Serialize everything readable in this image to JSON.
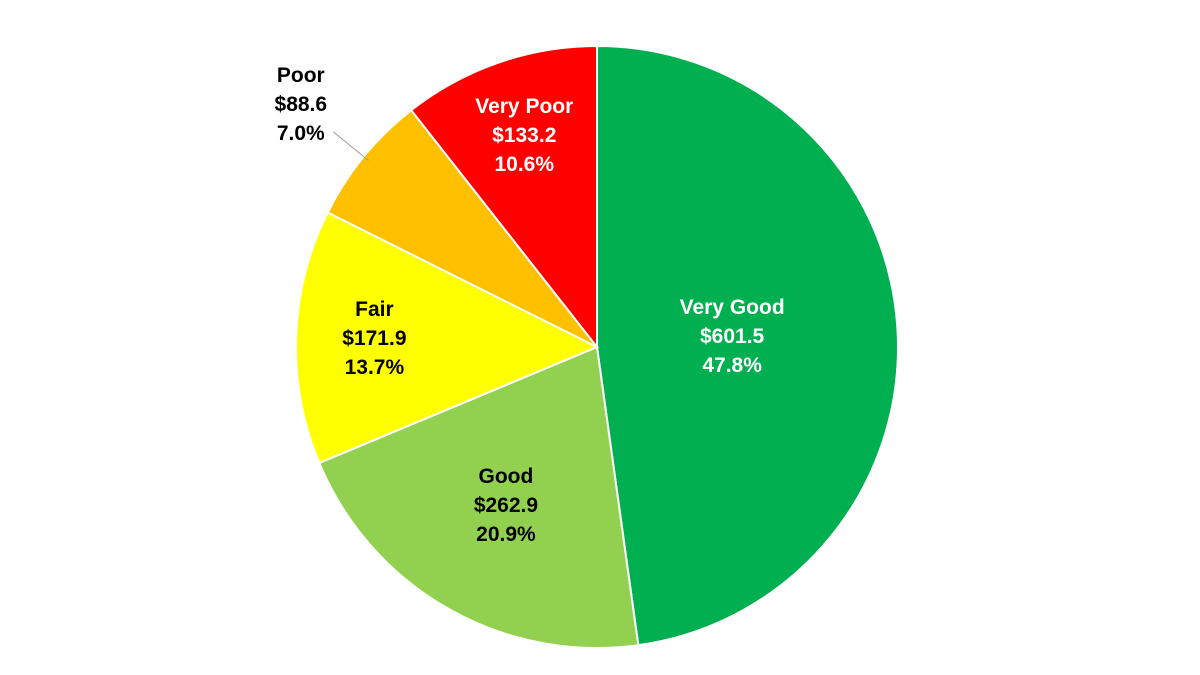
{
  "chart_data": {
    "type": "pie",
    "categories": [
      "Very Good",
      "Good",
      "Fair",
      "Poor",
      "Very Poor"
    ],
    "values": [
      601.5,
      262.9,
      171.9,
      88.6,
      133.2
    ],
    "value_labels": [
      "$601.5",
      "$262.9",
      "$171.9",
      "$88.6",
      "$133.2"
    ],
    "percent_labels": [
      "47.8%",
      "20.9%",
      "13.7%",
      "7.0%",
      "10.6%"
    ],
    "colors": [
      "#00b050",
      "#92d050",
      "#ffff00",
      "#ffc000",
      "#ff0000"
    ]
  }
}
